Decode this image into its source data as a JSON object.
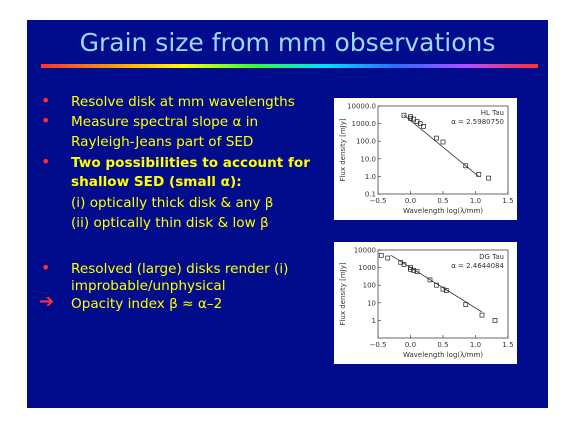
{
  "slide": {
    "title": "Grain size from mm observations",
    "bullets": [
      {
        "text": "Resolve disk at mm wavelengths"
      },
      {
        "text": "Measure spectral slope α in"
      },
      {
        "text": "Rayleigh-Jeans part of SED"
      },
      {
        "text": "Two possibilities to account for"
      },
      {
        "text": "shallow SED (small α):"
      },
      {
        "text": "(i) optically thick disk & any β"
      },
      {
        "text": "(ii) optically thin disk & low β"
      },
      {
        "text": "Resolved (large) disks render (i)"
      },
      {
        "text": "improbable/unphysical"
      },
      {
        "text": "Opacity index β ≈ α–2"
      }
    ],
    "colors": {
      "background": "#000c8c",
      "title": "#9fd8ff",
      "text": "#ffff00",
      "bullet": "#ff3030"
    }
  },
  "chart_data": [
    {
      "type": "scatter",
      "title": "HL Tau",
      "annotation": "α = 2.5980750",
      "xlabel": "Wavelength log(λ/mm)",
      "ylabel": "Flux density [mJy]",
      "xlim": [
        -0.5,
        1.5
      ],
      "ylim": [
        0.1,
        10000
      ],
      "y_log": true,
      "xticks": [
        "−0.5",
        "0.0",
        "0.5",
        "1.0",
        "1.5"
      ],
      "yticks": [
        "10000.0",
        "1000.0",
        "100.0",
        "10.0",
        "1.0",
        "0.1"
      ],
      "x": [
        -0.1,
        0.0,
        0.0,
        0.05,
        0.1,
        0.15,
        0.2,
        0.4,
        0.5,
        0.85,
        1.05,
        1.2
      ],
      "y": [
        3000,
        2500,
        2000,
        1800,
        1300,
        1000,
        700,
        150,
        90,
        4,
        1.3,
        0.8
      ],
      "fit_line": {
        "x": [
          -0.1,
          1.05
        ],
        "y": [
          3000,
          1.0
        ]
      }
    },
    {
      "type": "scatter",
      "title": "DG Tau",
      "annotation": "α = 2.4644084",
      "xlabel": "Wavelength log(λ/mm)",
      "ylabel": "Flux density [mJy]",
      "xlim": [
        -0.5,
        1.5
      ],
      "ylim": [
        0.1,
        10000
      ],
      "y_log": true,
      "xticks": [
        "−0.5",
        "0.0",
        "0.5",
        "1.0",
        "1.5"
      ],
      "yticks": [
        "10000",
        "1000",
        "100",
        "10",
        "1"
      ],
      "x": [
        -0.45,
        -0.35,
        -0.15,
        -0.1,
        0.0,
        0.0,
        0.05,
        0.1,
        0.3,
        0.4,
        0.5,
        0.55,
        0.85,
        1.1,
        1.3
      ],
      "y": [
        5000,
        3500,
        2000,
        1500,
        1000,
        800,
        700,
        600,
        200,
        100,
        60,
        50,
        8,
        2,
        1
      ],
      "fit_line": {
        "x": [
          -0.3,
          1.1
        ],
        "y": [
          5000,
          3
        ]
      }
    }
  ]
}
